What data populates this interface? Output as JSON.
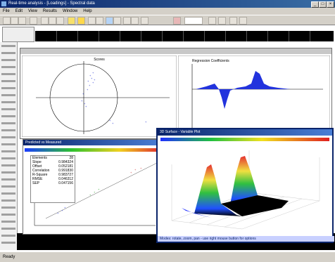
{
  "window": {
    "title": "Real-time analysis - [Loadings] - Spectral data"
  },
  "menu": [
    "File",
    "Edit",
    "View",
    "Results",
    "Window",
    "Help"
  ],
  "status": {
    "left": "Ready"
  },
  "panels": {
    "scores": {
      "title": "Scores"
    },
    "regression": {
      "title": "Regression Coefficients"
    },
    "predicted": {
      "title": "Predicted vs Measured",
      "stats": [
        {
          "k": "Elements",
          "v": "28"
        },
        {
          "k": "Slope",
          "v": "0.984324"
        },
        {
          "k": "Offset",
          "v": "0.052181"
        },
        {
          "k": "Correlation",
          "v": "0.991830"
        },
        {
          "k": "R-Square",
          "v": "0.983727"
        },
        {
          "k": "RMSE",
          "v": "0.046312"
        },
        {
          "k": "SEP",
          "v": "0.047156"
        }
      ]
    },
    "surface": {
      "title": "3D Surface - Variable Plot",
      "footer": "Modes: rotate, zoom, pan - use right mouse button for options"
    }
  }
}
